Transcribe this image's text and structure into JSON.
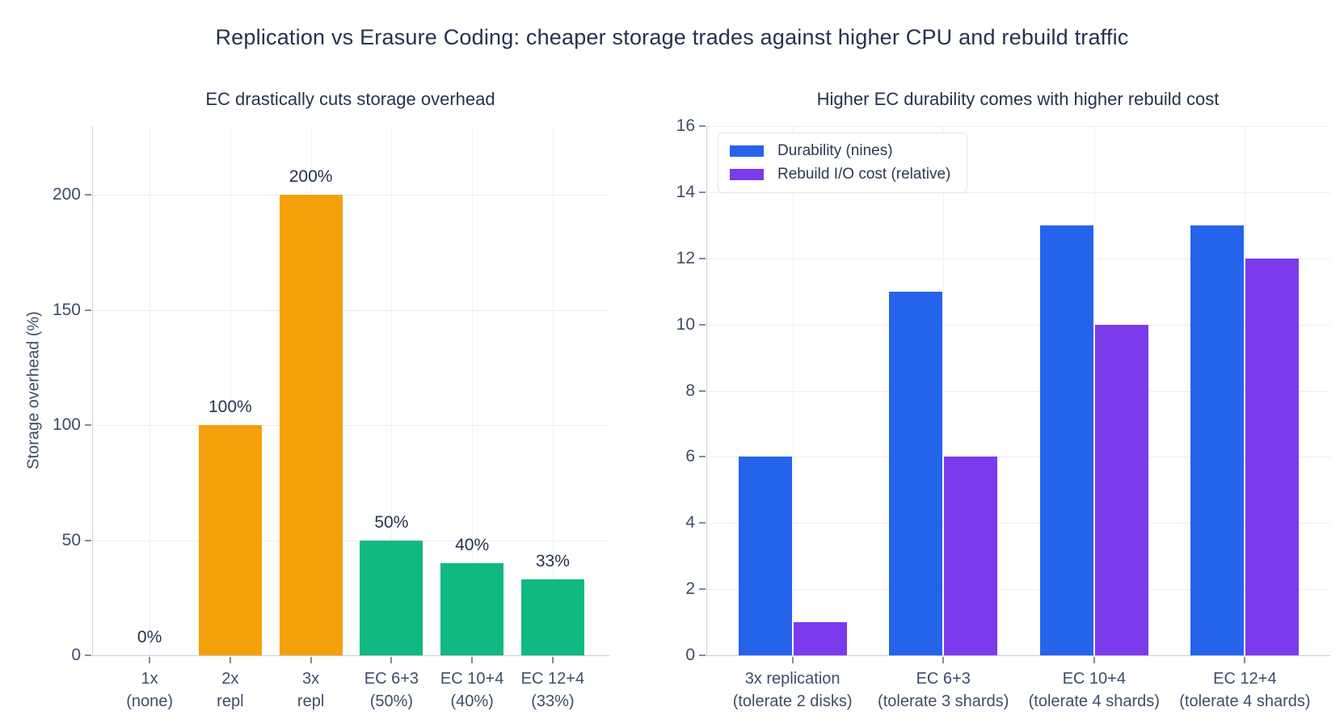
{
  "figure": {
    "title": "Replication vs Erasure Coding: cheaper storage trades against higher CPU and rebuild traffic",
    "background_color": "#ffffff",
    "title_color": "#25334d",
    "tick_color": "#3e4d69",
    "grid_color": "#e9eef6",
    "spine_color": "#c9d3e2"
  },
  "chart_data": [
    {
      "type": "bar",
      "title": "EC drastically cuts storage overhead",
      "xlabel": "",
      "ylabel": "Storage overhead (%)",
      "categories": [
        [
          "1x",
          "(none)"
        ],
        [
          "2x",
          "repl"
        ],
        [
          "3x",
          "repl"
        ],
        [
          "EC 6+3",
          "(50%)"
        ],
        [
          "EC 10+4",
          "(40%)"
        ],
        [
          "EC 12+4",
          "(33%)"
        ]
      ],
      "values": [
        0,
        100,
        200,
        50,
        40,
        33
      ],
      "value_labels": [
        "0%",
        "100%",
        "200%",
        "50%",
        "40%",
        "33%"
      ],
      "bar_colors": [
        "#f5a00b",
        "#f5a00b",
        "#f5a00b",
        "#10b981",
        "#10b981",
        "#10b981"
      ],
      "yticks": [
        0,
        50,
        100,
        150,
        200
      ],
      "ylim": [
        0,
        230
      ],
      "grid": true,
      "legend": null
    },
    {
      "type": "bar",
      "title": "Higher EC durability comes with higher rebuild cost",
      "xlabel": "",
      "ylabel": "",
      "categories": [
        [
          "3x replication",
          "(tolerate 2 disks)"
        ],
        [
          "EC 6+3",
          "(tolerate 3 shards)"
        ],
        [
          "EC 10+4",
          "(tolerate 4 shards)"
        ],
        [
          "EC 12+4",
          "(tolerate 4 shards)"
        ]
      ],
      "series": [
        {
          "name": "Durability (nines)",
          "color": "#2563eb",
          "values": [
            6,
            11,
            13,
            13
          ]
        },
        {
          "name": "Rebuild I/O cost (relative)",
          "color": "#7c3aed",
          "values": [
            1,
            6,
            10,
            12
          ]
        }
      ],
      "yticks": [
        0,
        2,
        4,
        6,
        8,
        10,
        12,
        14,
        16
      ],
      "ylim": [
        0,
        16
      ],
      "grid": true,
      "legend_position": "top-left"
    }
  ]
}
